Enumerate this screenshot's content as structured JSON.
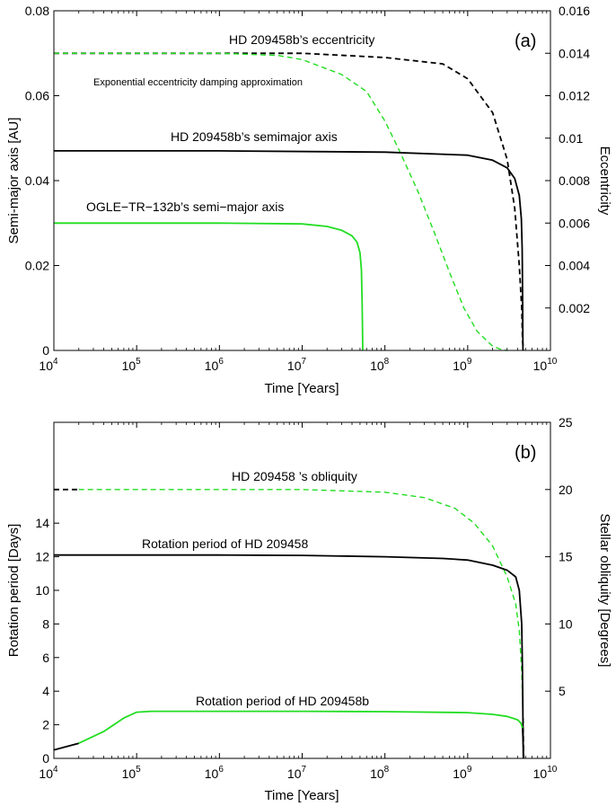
{
  "chart_data": [
    {
      "type": "line",
      "panel_label": "(a)",
      "xlabel": "Time [Years]",
      "ylabel": "Semi-major axis [AU]",
      "y2label": "Eccentricity",
      "xscale": "log",
      "xlim": [
        10000,
        10000000000
      ],
      "ylim": [
        0,
        0.08
      ],
      "y2lim": [
        0,
        0.016
      ],
      "x_tick_labels": [
        {
          "base": "10",
          "exp": "4"
        },
        {
          "base": "10",
          "exp": "5"
        },
        {
          "base": "10",
          "exp": "6"
        },
        {
          "base": "10",
          "exp": "7"
        },
        {
          "base": "10",
          "exp": "8"
        },
        {
          "base": "10",
          "exp": "9"
        },
        {
          "base": "10",
          "exp": "10"
        }
      ],
      "y_ticks": [
        "0",
        "0.02",
        "0.04",
        "0.06",
        "0.08"
      ],
      "y2_ticks": [
        "0.002",
        "0.004",
        "0.006",
        "0.008",
        "0.01",
        "0.012",
        "0.014",
        "0.016"
      ],
      "annotations": [
        "HD 209458b’s eccentricity",
        "Exponential eccentricity damping approximation",
        "HD 209458b’s semimajor axis",
        "OGLE−TR−132b’s semi−major axis"
      ],
      "series": [
        {
          "name": "HD 209458b's eccentricity",
          "axis": "right",
          "color": "#000000",
          "dash": true,
          "x": [
            10000,
            1000000,
            10000000,
            100000000,
            500000000,
            1000000000,
            2000000000,
            3000000000,
            3700000000,
            4200000000,
            4500000000,
            4600000000,
            4700000000
          ],
          "y": [
            0.014,
            0.014,
            0.014,
            0.0138,
            0.0135,
            0.0128,
            0.0112,
            0.009,
            0.0067,
            0.004,
            0.002,
            0.0005,
            0
          ]
        },
        {
          "name": "Exponential eccentricity damping approximation",
          "axis": "right",
          "color": "#22dd22",
          "dash": true,
          "x": [
            10000,
            1000000,
            5000000,
            10000000,
            30000000,
            60000000,
            100000000,
            150000000,
            250000000,
            400000000,
            600000000,
            900000000,
            1300000000,
            2000000000,
            2600000000,
            3000000000
          ],
          "y": [
            0.014,
            0.014,
            0.0139,
            0.0137,
            0.013,
            0.0122,
            0.0108,
            0.0094,
            0.0075,
            0.0055,
            0.0037,
            0.002,
            0.0009,
            0.0002,
            3e-05,
            0
          ]
        },
        {
          "name": "HD 209458b's semimajor axis",
          "axis": "left",
          "color": "#000000",
          "dash": false,
          "x": [
            10000,
            1000000,
            100000000,
            1000000000,
            2000000000,
            3000000000,
            3700000000,
            4200000000,
            4450000000,
            4550000000,
            4600000000,
            4650000000
          ],
          "y": [
            0.047,
            0.047,
            0.0467,
            0.046,
            0.0448,
            0.043,
            0.0405,
            0.0365,
            0.031,
            0.024,
            0.015,
            0
          ]
        },
        {
          "name": "OGLE-TR-132b's semi-major axis",
          "axis": "left",
          "color": "#22dd22",
          "dash": false,
          "x": [
            10000,
            1000000,
            10000000,
            20000000,
            30000000,
            40000000,
            46000000,
            50000000,
            52000000,
            53000000,
            54000000
          ],
          "y": [
            0.03,
            0.03,
            0.0298,
            0.0292,
            0.0283,
            0.027,
            0.0255,
            0.023,
            0.019,
            0.011,
            0
          ]
        }
      ]
    },
    {
      "type": "line",
      "panel_label": "(b)",
      "xlabel": "Time [Years]",
      "ylabel": "Rotation period [Days]",
      "y2label": "Stellar obliquity [Degrees]",
      "xscale": "log",
      "xlim": [
        10000,
        10000000000
      ],
      "ylim": [
        0,
        20
      ],
      "y2lim": [
        0,
        25
      ],
      "x_tick_labels": [
        {
          "base": "10",
          "exp": "4"
        },
        {
          "base": "10",
          "exp": "5"
        },
        {
          "base": "10",
          "exp": "6"
        },
        {
          "base": "10",
          "exp": "7"
        },
        {
          "base": "10",
          "exp": "8"
        },
        {
          "base": "10",
          "exp": "9"
        },
        {
          "base": "10",
          "exp": "10"
        }
      ],
      "y_ticks": [
        "0",
        "2",
        "4",
        "6",
        "8",
        "10",
        "12",
        "14"
      ],
      "y2_ticks": [
        "5",
        "10",
        "15",
        "20",
        "25"
      ],
      "annotations": [
        "HD 209458 ’s obliquity",
        "Rotation period of HD 209458",
        "Rotation period of HD 209458b"
      ],
      "series": [
        {
          "name": "HD 209458's obliquity (early)",
          "axis": "right",
          "color": "#000000",
          "dash": true,
          "x": [
            10000,
            20000
          ],
          "y": [
            20,
            20
          ]
        },
        {
          "name": "HD 209458's obliquity",
          "axis": "right",
          "color": "#22dd22",
          "dash": true,
          "x": [
            20000,
            1000000,
            10000000,
            100000000,
            300000000,
            700000000,
            1200000000,
            2000000000,
            3000000000,
            3800000000,
            4200000000,
            4500000000,
            4650000000
          ],
          "y": [
            20,
            20,
            20,
            19.8,
            19.4,
            18.6,
            17.5,
            15.8,
            13.5,
            11.5,
            9.5,
            6.5,
            3
          ]
        },
        {
          "name": "HD 209458's obliquity (late)",
          "axis": "right",
          "color": "#000000",
          "dash": true,
          "x": [
            4650000000,
            4700000000,
            4750000000
          ],
          "y": [
            3,
            1.5,
            0
          ]
        },
        {
          "name": "Rotation period of HD 209458",
          "axis": "left",
          "color": "#000000",
          "dash": false,
          "x": [
            10000,
            1000000,
            10000000,
            100000000,
            500000000,
            1000000000,
            2000000000,
            3000000000,
            3800000000,
            4200000000,
            4500000000,
            4600000000,
            4700000000
          ],
          "y": [
            12.1,
            12.1,
            12.08,
            12.0,
            11.9,
            11.8,
            11.5,
            11.2,
            10.8,
            10.0,
            8.0,
            5.0,
            0
          ]
        },
        {
          "name": "Rotation period of HD 209458b (early)",
          "axis": "left",
          "color": "#000000",
          "dash": false,
          "x": [
            10000,
            20000
          ],
          "y": [
            0.5,
            0.9
          ]
        },
        {
          "name": "Rotation period of HD 209458b",
          "axis": "left",
          "color": "#22dd22",
          "dash": false,
          "x": [
            20000,
            40000,
            70000,
            100000,
            150000,
            1000000,
            10000000,
            100000000,
            1000000000,
            2000000000,
            3000000000,
            4000000000,
            4400000000,
            4600000000
          ],
          "y": [
            0.9,
            1.6,
            2.4,
            2.75,
            2.8,
            2.8,
            2.8,
            2.78,
            2.72,
            2.62,
            2.5,
            2.3,
            2.1,
            1.8
          ]
        },
        {
          "name": "Rotation period of HD 209458b (late)",
          "axis": "left",
          "color": "#000000",
          "dash": false,
          "x": [
            4600000000,
            4650000000,
            4700000000,
            4720000000
          ],
          "y": [
            1.8,
            1.2,
            0.6,
            0
          ]
        }
      ]
    }
  ]
}
